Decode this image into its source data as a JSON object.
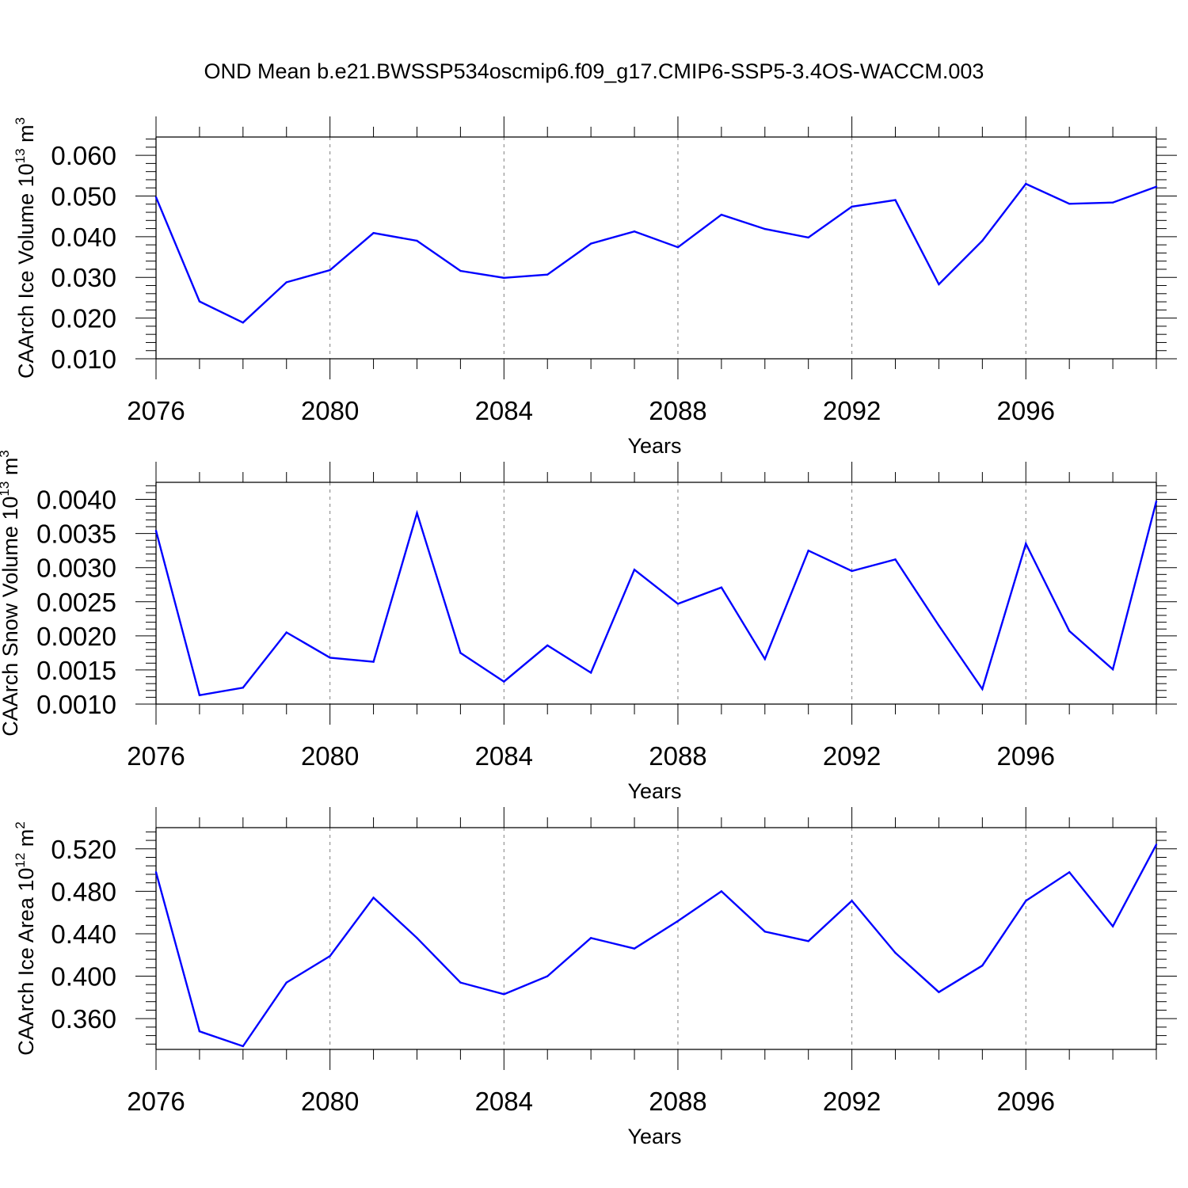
{
  "title": "OND Mean b.e21.BWSSP534oscmip6.f09_g17.CMIP6-SSP5-3.4OS-WACCM.003",
  "colors": {
    "line": "#0000ff",
    "axis": "#000000",
    "grid": "#7f7f7f",
    "background": "#ffffff"
  },
  "chart_data": [
    {
      "type": "line",
      "ylabel": {
        "text": "CAArch Ice Volume 10",
        "exponent": "13",
        "unit": " m",
        "unit_exponent": "3"
      },
      "xlabel": "Years",
      "xlim": [
        2076,
        2099
      ],
      "ylim": [
        0.01,
        0.0645
      ],
      "xticks": [
        2076,
        2080,
        2084,
        2088,
        2092,
        2096
      ],
      "xtick_labels": [
        "2076",
        "2080",
        "2084",
        "2088",
        "2092",
        "2096"
      ],
      "yticks": [
        0.01,
        0.02,
        0.03,
        0.04,
        0.05,
        0.06
      ],
      "ytick_labels": [
        "0.010",
        "0.020",
        "0.030",
        "0.040",
        "0.050",
        "0.060"
      ],
      "grid": "vertical dashed at major x ticks",
      "x": [
        2076,
        2077,
        2078,
        2079,
        2080,
        2081,
        2082,
        2083,
        2084,
        2085,
        2086,
        2087,
        2088,
        2089,
        2090,
        2091,
        2092,
        2093,
        2094,
        2095,
        2096,
        2097,
        2098,
        2099
      ],
      "values": [
        0.0497,
        0.0241,
        0.0189,
        0.0288,
        0.0318,
        0.0409,
        0.039,
        0.0316,
        0.0299,
        0.0307,
        0.0383,
        0.0413,
        0.0374,
        0.0454,
        0.0419,
        0.0398,
        0.0474,
        0.049,
        0.0283,
        0.039,
        0.053,
        0.0481,
        0.0484,
        0.0523
      ]
    },
    {
      "type": "line",
      "ylabel": {
        "text": "CAArch Snow Volume 10",
        "exponent": "13",
        "unit": " m",
        "unit_exponent": "3"
      },
      "xlabel": "Years",
      "xlim": [
        2076,
        2099
      ],
      "ylim": [
        0.001,
        0.00425
      ],
      "xticks": [
        2076,
        2080,
        2084,
        2088,
        2092,
        2096
      ],
      "xtick_labels": [
        "2076",
        "2080",
        "2084",
        "2088",
        "2092",
        "2096"
      ],
      "yticks": [
        0.001,
        0.0015,
        0.002,
        0.0025,
        0.003,
        0.0035,
        0.004
      ],
      "ytick_labels": [
        "0.0010",
        "0.0015",
        "0.0020",
        "0.0025",
        "0.0030",
        "0.0035",
        "0.0040"
      ],
      "grid": "vertical dashed at major x ticks",
      "x": [
        2076,
        2077,
        2078,
        2079,
        2080,
        2081,
        2082,
        2083,
        2084,
        2085,
        2086,
        2087,
        2088,
        2089,
        2090,
        2091,
        2092,
        2093,
        2094,
        2095,
        2096,
        2097,
        2098,
        2099
      ],
      "values": [
        0.00354,
        0.00113,
        0.00124,
        0.00205,
        0.00168,
        0.00162,
        0.0038,
        0.00175,
        0.00133,
        0.00186,
        0.00146,
        0.00297,
        0.00247,
        0.00271,
        0.00166,
        0.00325,
        0.00295,
        0.00312,
        0.00215,
        0.00122,
        0.00335,
        0.00207,
        0.00151,
        0.00397
      ]
    },
    {
      "type": "line",
      "ylabel": {
        "text": "CAArch Ice Area 10",
        "exponent": "12",
        "unit": " m",
        "unit_exponent": "2"
      },
      "xlabel": "Years",
      "xlim": [
        2076,
        2099
      ],
      "ylim": [
        0.331,
        0.54
      ],
      "xticks": [
        2076,
        2080,
        2084,
        2088,
        2092,
        2096
      ],
      "xtick_labels": [
        "2076",
        "2080",
        "2084",
        "2088",
        "2092",
        "2096"
      ],
      "yticks": [
        0.36,
        0.4,
        0.44,
        0.48,
        0.52
      ],
      "ytick_labels": [
        "0.360",
        "0.400",
        "0.440",
        "0.480",
        "0.520"
      ],
      "grid": "vertical dashed at major x ticks",
      "x": [
        2076,
        2077,
        2078,
        2079,
        2080,
        2081,
        2082,
        2083,
        2084,
        2085,
        2086,
        2087,
        2088,
        2089,
        2090,
        2091,
        2092,
        2093,
        2094,
        2095,
        2096,
        2097,
        2098,
        2099
      ],
      "values": [
        0.498,
        0.348,
        0.334,
        0.394,
        0.419,
        0.474,
        0.436,
        0.394,
        0.383,
        0.4,
        0.436,
        0.426,
        0.452,
        0.48,
        0.442,
        0.433,
        0.471,
        0.422,
        0.385,
        0.41,
        0.471,
        0.498,
        0.447,
        0.524
      ]
    }
  ]
}
